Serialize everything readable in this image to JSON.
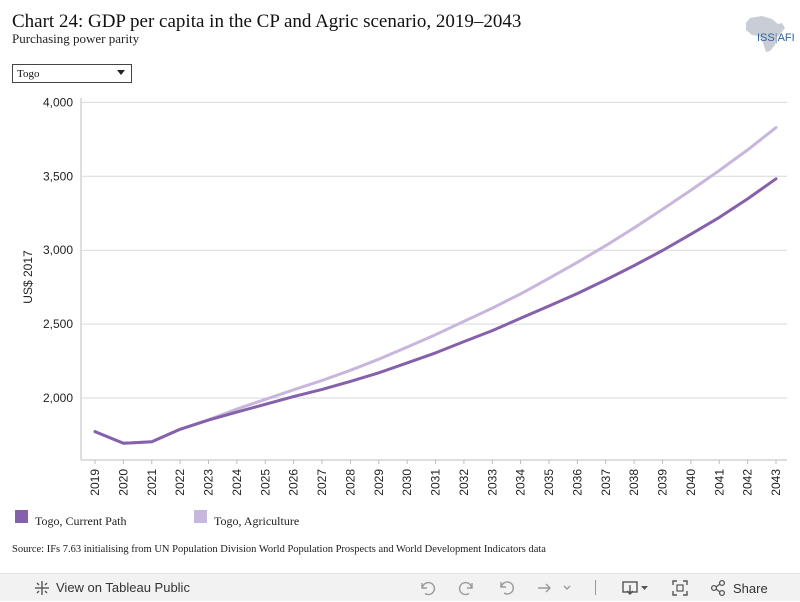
{
  "header": {
    "title": "Chart 24: GDP per capita in the CP and Agric scenario, 2019–2043",
    "subtitle": "Purchasing power parity",
    "logo_text": "ISS",
    "logo_suffix": "AFI"
  },
  "filter": {
    "selected": "Togo"
  },
  "chart_data": {
    "type": "line",
    "title": "",
    "xlabel": "",
    "ylabel": "US$ 2017",
    "x": [
      2019,
      2020,
      2021,
      2022,
      2023,
      2024,
      2025,
      2026,
      2027,
      2028,
      2029,
      2030,
      2031,
      2032,
      2033,
      2034,
      2035,
      2036,
      2037,
      2038,
      2039,
      2040,
      2041,
      2042,
      2043
    ],
    "ylim": [
      1580,
      4030
    ],
    "yticks": [
      2000,
      2500,
      3000,
      3500,
      4000
    ],
    "ytick_labels": [
      "2,000",
      "2,500",
      "3,000",
      "3,500",
      "4,000"
    ],
    "grid": "horizontal",
    "legend_position": "bottom-left",
    "series": [
      {
        "name": "Togo, Current Path",
        "color": "#8561ac",
        "values": [
          1772,
          1693,
          1703,
          1788,
          1850,
          1904,
          1957,
          2009,
          2058,
          2112,
          2170,
          2237,
          2305,
          2381,
          2456,
          2539,
          2622,
          2707,
          2799,
          2896,
          2998,
          3108,
          3222,
          3347,
          3483
        ]
      },
      {
        "name": "Togo, Agriculture",
        "color": "#c8b7dc",
        "values": [
          1772,
          1693,
          1703,
          1788,
          1852,
          1925,
          1990,
          2055,
          2118,
          2187,
          2262,
          2344,
          2428,
          2518,
          2608,
          2704,
          2810,
          2918,
          3031,
          3151,
          3277,
          3406,
          3539,
          3679,
          3830
        ]
      }
    ]
  },
  "source": "Source: IFs 7.63 initialising from UN Population Division World Population Prospects and World Development Indicators data",
  "toolbar": {
    "view_label": "View on Tableau Public",
    "share_label": "Share"
  },
  "colors": {
    "grid": "#d9d9d9",
    "axis": "#bdbdbd",
    "toolbar_icon": "#8a8a8a",
    "logo_blue": "#2f5e9e"
  }
}
